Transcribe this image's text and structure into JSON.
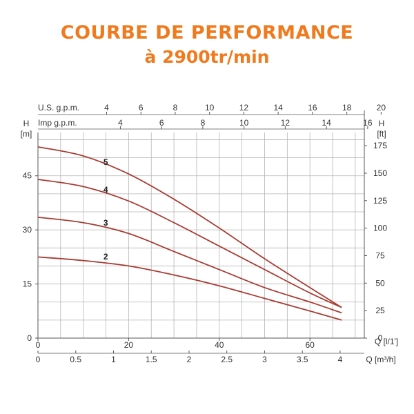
{
  "header": {
    "title": "COURBE DE PERFORMANCE",
    "subtitle": "à 2900tr/min"
  },
  "colors": {
    "title": "#f07a1e",
    "curve": "#a83c32",
    "grid": "#b4b4b4",
    "axis": "#555555"
  },
  "chart_data": {
    "type": "line",
    "title": "COURBE DE PERFORMANCE",
    "subtitle": "à 2900tr/min",
    "grid": true,
    "axes": {
      "left": {
        "label": "H",
        "unit": "[m]",
        "ticks": [
          0,
          15,
          30,
          45
        ],
        "range": [
          0,
          57
        ]
      },
      "right": {
        "label": "H",
        "unit": "[ft]",
        "ticks": [
          0,
          25,
          50,
          75,
          100,
          125,
          150,
          175
        ]
      },
      "bottom_primary": {
        "label": "Q",
        "unit": "[l/1']",
        "ticks": [
          0,
          20,
          40,
          60
        ],
        "range": [
          0,
          72
        ]
      },
      "bottom_secondary": {
        "label": "Q",
        "unit": "[m³/h]",
        "ticks": [
          "0",
          "0.5",
          "1",
          "1.5",
          "2",
          "2.5",
          "3",
          "3.5",
          "4"
        ]
      },
      "top_us": {
        "label": "U.S. g.p.m.",
        "ticks": [
          4,
          6,
          8,
          10,
          12,
          14,
          16,
          18,
          20
        ]
      },
      "top_imp": {
        "label": "Imp g.p.m.",
        "ticks": [
          4,
          6,
          8,
          10,
          12,
          14,
          16
        ]
      }
    },
    "series": [
      {
        "name": "5",
        "x": [
          0,
          10,
          20,
          30,
          40,
          50,
          60,
          67
        ],
        "y": [
          53,
          50.5,
          45.5,
          38.5,
          30.5,
          22,
          14,
          8.5
        ]
      },
      {
        "name": "4",
        "x": [
          0,
          10,
          20,
          30,
          40,
          50,
          60,
          67
        ],
        "y": [
          44,
          42,
          38,
          32,
          25.5,
          19,
          12.5,
          8.5
        ]
      },
      {
        "name": "3",
        "x": [
          0,
          10,
          20,
          30,
          40,
          50,
          60,
          67
        ],
        "y": [
          33.5,
          32,
          29,
          24,
          19,
          14,
          10,
          7
        ]
      },
      {
        "name": "2",
        "x": [
          0,
          10,
          20,
          30,
          40,
          50,
          60,
          67
        ],
        "y": [
          22.5,
          21.5,
          20,
          17.5,
          14.5,
          11,
          7.5,
          5
        ]
      }
    ]
  }
}
